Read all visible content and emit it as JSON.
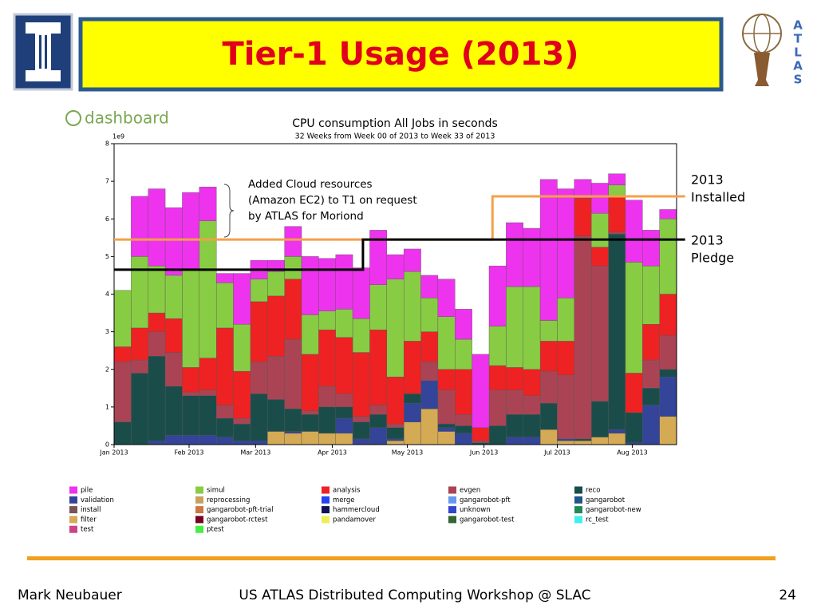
{
  "slide": {
    "title": "Tier-1 Usage (2013)",
    "logo_letters": [
      "A",
      "T",
      "L",
      "A",
      "S"
    ],
    "dashboard_logo": "dashboard",
    "footer": {
      "author": "Mark Neubauer",
      "event": "US ATLAS Distributed Computing Workshop @ SLAC",
      "page": "24"
    }
  },
  "chart_data": {
    "type": "bar",
    "stacked": true,
    "title": "CPU consumption All Jobs in seconds",
    "subtitle": "32 Weeks from Week 00 of 2013 to Week 33 of 2013",
    "y_multiplier": "1e9",
    "annotation": [
      "Added Cloud resources",
      "(Amazon EC2) to T1 on request",
      "by ATLAS for Moriond"
    ],
    "xlim": [
      0,
      33
    ],
    "ylim": [
      0,
      8
    ],
    "yticks": [
      0,
      1,
      2,
      3,
      4,
      5,
      6,
      7,
      8
    ],
    "xticks": [
      {
        "value": 0,
        "label": "Jan 2013"
      },
      {
        "value": 4.4,
        "label": "Feb 2013"
      },
      {
        "value": 8.3,
        "label": "Mar 2013"
      },
      {
        "value": 12.8,
        "label": "Apr 2013"
      },
      {
        "value": 17.2,
        "label": "May 2013"
      },
      {
        "value": 21.7,
        "label": "Jun 2013"
      },
      {
        "value": 26.0,
        "label": "Jul 2013"
      },
      {
        "value": 30.4,
        "label": "Aug 2013"
      }
    ],
    "x": [
      0,
      1,
      2,
      3,
      4,
      5,
      6,
      7,
      8,
      9,
      10,
      11,
      12,
      13,
      14,
      15,
      16,
      17,
      18,
      19,
      20,
      21,
      22,
      23,
      24,
      25,
      26,
      27,
      28,
      29,
      30,
      31,
      32
    ],
    "series": [
      {
        "name": "pile",
        "color": "#ee33ee",
        "values": [
          0,
          1.6,
          2.05,
          1.8,
          2.05,
          0.9,
          0.25,
          1.35,
          0.5,
          0.3,
          0.8,
          1.55,
          1.4,
          1.45,
          1.35,
          1.45,
          0.65,
          0.6,
          0.6,
          1.0,
          0.8,
          1.95,
          1.6,
          1.7,
          1.55,
          3.75,
          2.9,
          0.5,
          0.8,
          0.3,
          1.65,
          0.95,
          0.25
        ]
      },
      {
        "name": "simul",
        "color": "#88cc44",
        "values": [
          1.5,
          1.9,
          1.25,
          1.15,
          2.6,
          3.65,
          1.2,
          1.25,
          0.6,
          0.65,
          0.6,
          1.05,
          0.5,
          0.75,
          0.9,
          1.2,
          2.6,
          1.85,
          0.9,
          1.4,
          0.8,
          0,
          1.05,
          2.15,
          2.2,
          0.55,
          1.15,
          0,
          0.9,
          0.3,
          2.95,
          1.55,
          2.0
        ]
      },
      {
        "name": "analysis",
        "color": "#ee2222",
        "values": [
          0.4,
          0.85,
          0.5,
          0.9,
          0.65,
          0.85,
          2.05,
          1.25,
          1.6,
          1.6,
          1.6,
          1.5,
          1.5,
          1.5,
          1.7,
          2.0,
          1.25,
          1.4,
          0.8,
          0.55,
          1.2,
          0.35,
          0.65,
          0.6,
          0.7,
          0.8,
          0.9,
          1.0,
          0.5,
          0.95,
          1.05,
          0.95,
          1.1
        ]
      },
      {
        "name": "evgen",
        "color": "#aa4455",
        "values": [
          1.6,
          0.35,
          0.65,
          0.9,
          0.1,
          0.15,
          0.35,
          0.15,
          0.85,
          1.15,
          1.85,
          0.1,
          0.55,
          0.35,
          0.15,
          0.25,
          0.1,
          0,
          0.5,
          0.9,
          0.3,
          0.05,
          0.95,
          0.65,
          0.5,
          0.85,
          1.7,
          5.4,
          3.6,
          0.05,
          0,
          0.75,
          0.9
        ]
      },
      {
        "name": "reco",
        "color": "#1a4d4a",
        "values": [
          0.6,
          1.9,
          2.25,
          1.3,
          1.05,
          1.05,
          0.5,
          0.45,
          1.25,
          0.85,
          0.6,
          0.45,
          0.7,
          0.3,
          0.45,
          0.35,
          0.3,
          0.25,
          0,
          0.1,
          0.2,
          0.05,
          0.5,
          0.6,
          0.6,
          0.7,
          0,
          0.05,
          0.95,
          5.2,
          0.8,
          0.45,
          0.2
        ]
      },
      {
        "name": "validation",
        "color": "#334499",
        "values": [
          0,
          0,
          0.1,
          0.25,
          0.25,
          0.25,
          0.2,
          0.1,
          0.1,
          0,
          0.05,
          0,
          0,
          0.4,
          0.15,
          0.45,
          0.05,
          0.5,
          0.75,
          0.1,
          0.3,
          0,
          0,
          0.2,
          0.2,
          0,
          0.05,
          0,
          0,
          0.1,
          0.05,
          1.05,
          1.05
        ]
      },
      {
        "name": "reprocessing",
        "color": "#c8a060",
        "values": [
          0,
          0,
          0,
          0,
          0,
          0,
          0,
          0,
          0,
          0,
          0,
          0,
          0,
          0,
          0,
          0,
          0,
          0,
          0,
          0,
          0,
          0,
          0,
          0,
          0,
          0,
          0,
          0,
          0,
          0,
          0,
          0,
          0
        ]
      },
      {
        "name": "merge",
        "color": "#2244ee",
        "values": [
          0,
          0,
          0,
          0,
          0,
          0,
          0,
          0,
          0,
          0,
          0,
          0,
          0,
          0,
          0,
          0,
          0,
          0,
          0,
          0,
          0,
          0,
          0,
          0,
          0,
          0,
          0,
          0,
          0,
          0,
          0,
          0,
          0
        ]
      },
      {
        "name": "gangarobot-pft",
        "color": "#6699ee",
        "values": [
          0,
          0,
          0,
          0,
          0,
          0,
          0,
          0,
          0,
          0,
          0,
          0,
          0,
          0,
          0,
          0,
          0,
          0,
          0,
          0,
          0,
          0,
          0,
          0,
          0,
          0,
          0,
          0,
          0,
          0,
          0,
          0,
          0
        ]
      },
      {
        "name": "gangarobot",
        "color": "#1f5588",
        "values": [
          0,
          0,
          0,
          0,
          0,
          0,
          0,
          0,
          0,
          0,
          0,
          0,
          0,
          0,
          0,
          0,
          0,
          0,
          0,
          0,
          0,
          0,
          0,
          0,
          0,
          0,
          0,
          0,
          0,
          0,
          0,
          0,
          0
        ]
      },
      {
        "name": "install",
        "color": "#775555",
        "values": [
          0,
          0,
          0,
          0,
          0,
          0,
          0,
          0,
          0,
          0,
          0,
          0,
          0,
          0,
          0,
          0,
          0,
          0,
          0,
          0,
          0,
          0,
          0,
          0,
          0,
          0,
          0,
          0,
          0,
          0,
          0,
          0,
          0
        ]
      },
      {
        "name": "gangarobot-pft-trial",
        "color": "#cc7744",
        "values": [
          0,
          0,
          0,
          0,
          0,
          0,
          0,
          0,
          0,
          0,
          0,
          0,
          0,
          0,
          0,
          0,
          0,
          0,
          0,
          0,
          0,
          0,
          0,
          0,
          0,
          0,
          0,
          0,
          0,
          0,
          0,
          0,
          0
        ]
      },
      {
        "name": "hammercloud",
        "color": "#111155",
        "values": [
          0,
          0,
          0,
          0,
          0,
          0,
          0,
          0,
          0,
          0,
          0,
          0,
          0,
          0,
          0,
          0,
          0,
          0,
          0,
          0,
          0,
          0,
          0,
          0,
          0,
          0,
          0,
          0,
          0,
          0,
          0,
          0,
          0
        ]
      },
      {
        "name": "unknown",
        "color": "#3344cc",
        "values": [
          0,
          0,
          0,
          0,
          0,
          0,
          0,
          0,
          0,
          0,
          0,
          0,
          0,
          0,
          0,
          0,
          0,
          0,
          0,
          0,
          0,
          0,
          0,
          0,
          0,
          0,
          0,
          0,
          0,
          0,
          0,
          0,
          0
        ]
      },
      {
        "name": "gangarobot-new",
        "color": "#228855",
        "values": [
          0,
          0,
          0,
          0,
          0,
          0,
          0,
          0,
          0,
          0,
          0,
          0,
          0,
          0,
          0,
          0,
          0,
          0,
          0,
          0,
          0,
          0,
          0,
          0,
          0,
          0,
          0,
          0,
          0,
          0,
          0,
          0,
          0
        ]
      },
      {
        "name": "filter",
        "color": "#d4aa55",
        "values": [
          0,
          0,
          0,
          0,
          0,
          0,
          0,
          0,
          0,
          0.35,
          0.3,
          0.35,
          0.3,
          0.3,
          0,
          0,
          0.1,
          0.6,
          0.95,
          0.35,
          0,
          0,
          0,
          0,
          0,
          0.4,
          0.1,
          0.1,
          0.2,
          0.3,
          0,
          0,
          0.75
        ]
      },
      {
        "name": "gangarobot-rctest",
        "color": "#770022",
        "values": [
          0,
          0,
          0,
          0,
          0,
          0,
          0,
          0,
          0,
          0,
          0,
          0,
          0,
          0,
          0,
          0,
          0,
          0,
          0,
          0,
          0,
          0,
          0,
          0,
          0,
          0,
          0,
          0,
          0,
          0,
          0,
          0,
          0
        ]
      },
      {
        "name": "pandamover",
        "color": "#eeee55",
        "values": [
          0,
          0,
          0,
          0,
          0,
          0,
          0,
          0,
          0,
          0,
          0,
          0,
          0,
          0,
          0,
          0,
          0,
          0,
          0,
          0,
          0,
          0,
          0,
          0,
          0,
          0,
          0,
          0,
          0,
          0,
          0,
          0,
          0
        ]
      },
      {
        "name": "gangarobot-test",
        "color": "#336633",
        "values": [
          0,
          0,
          0,
          0,
          0,
          0,
          0,
          0,
          0,
          0,
          0,
          0,
          0,
          0,
          0,
          0,
          0,
          0,
          0,
          0,
          0,
          0,
          0,
          0,
          0,
          0,
          0,
          0,
          0,
          0,
          0,
          0,
          0
        ]
      },
      {
        "name": "rc_test",
        "color": "#44eeee",
        "values": [
          0,
          0,
          0,
          0,
          0,
          0,
          0,
          0,
          0,
          0,
          0,
          0,
          0,
          0,
          0,
          0,
          0,
          0,
          0,
          0,
          0,
          0,
          0,
          0,
          0,
          0,
          0,
          0,
          0,
          0,
          0,
          0,
          0
        ]
      },
      {
        "name": "test",
        "color": "#cc4488",
        "values": [
          0,
          0,
          0,
          0,
          0,
          0,
          0,
          0,
          0,
          0,
          0,
          0,
          0,
          0,
          0,
          0,
          0,
          0,
          0,
          0,
          0,
          0,
          0,
          0,
          0,
          0,
          0,
          0,
          0,
          0,
          0,
          0,
          0
        ]
      },
      {
        "name": "ptest",
        "color": "#44ee44",
        "values": [
          0,
          0,
          0,
          0,
          0,
          0,
          0,
          0,
          0,
          0,
          0,
          0,
          0,
          0,
          0,
          0,
          0,
          0,
          0,
          0,
          0,
          0,
          0,
          0,
          0,
          0,
          0,
          0,
          0,
          0,
          0,
          0,
          0
        ]
      }
    ],
    "lines": [
      {
        "label": [
          "2013",
          "Installed"
        ],
        "color": "#f4a04a",
        "x": [
          0,
          22.2,
          22.2,
          33.5
        ],
        "values": [
          5.45,
          5.45,
          6.6,
          6.6
        ]
      },
      {
        "label": [
          "2013",
          "Pledge"
        ],
        "color": "#000000",
        "x": [
          0,
          14.6,
          14.6,
          33.5
        ],
        "values": [
          4.65,
          4.65,
          5.45,
          5.45
        ]
      }
    ]
  }
}
